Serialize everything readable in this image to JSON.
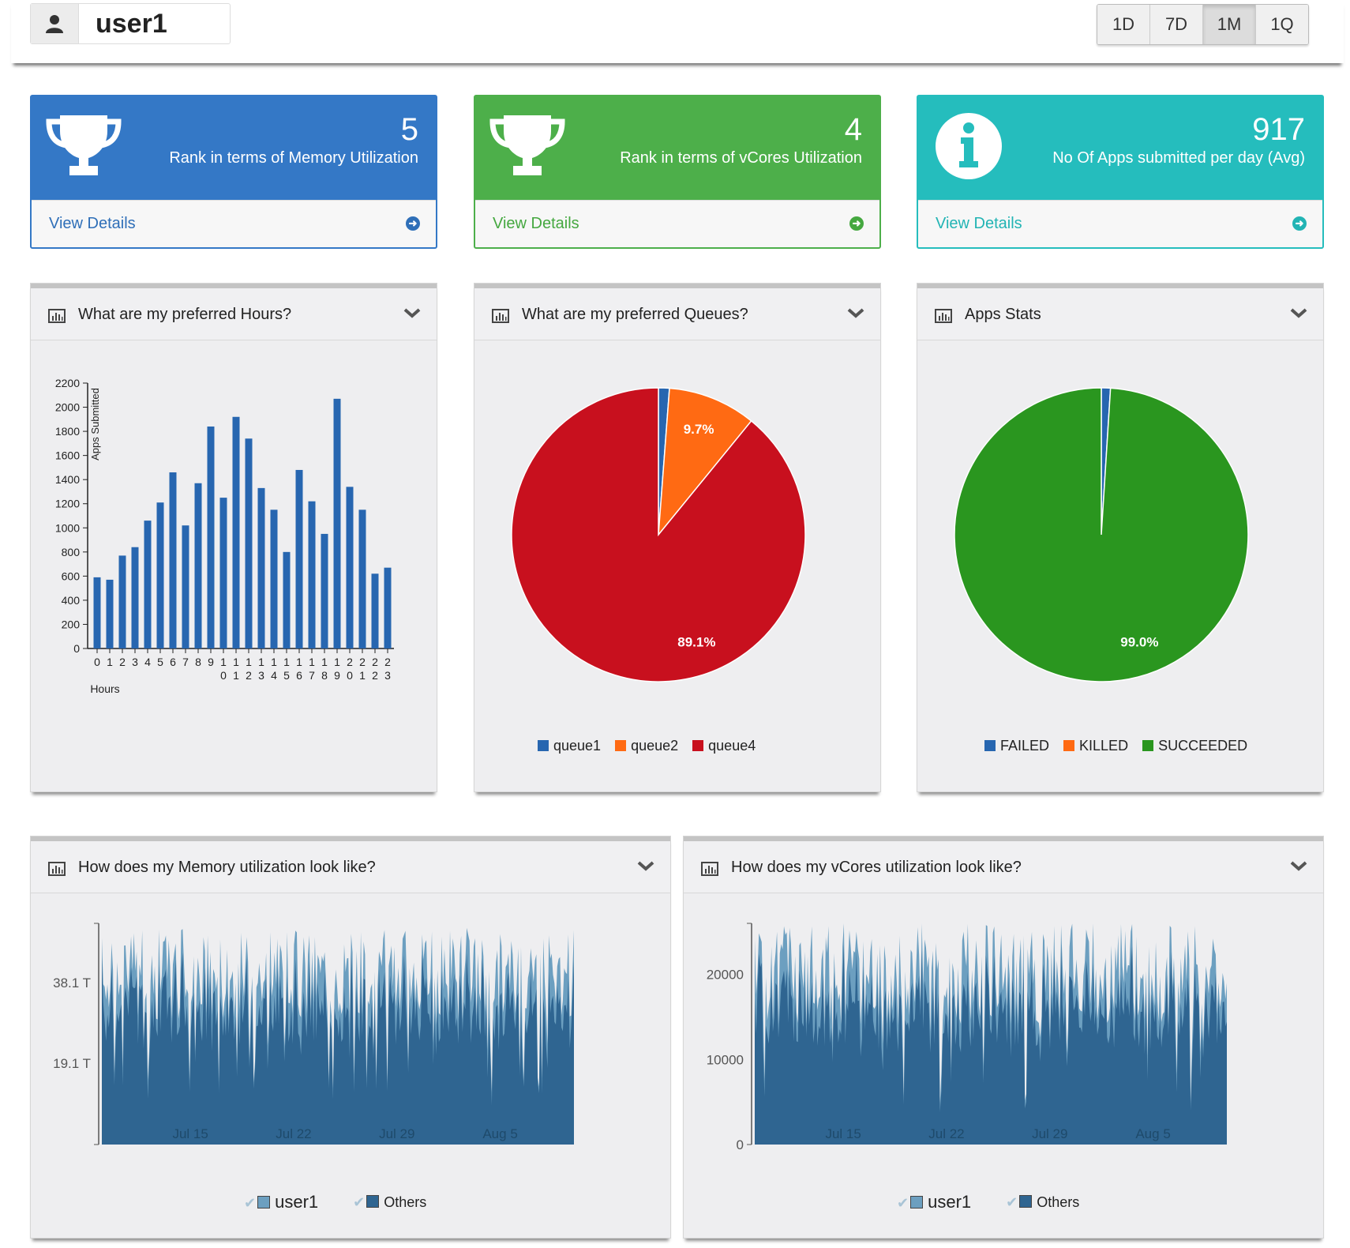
{
  "header": {
    "username": "user1",
    "periods": [
      "1D",
      "7D",
      "1M",
      "1Q"
    ],
    "active_period": "1M"
  },
  "stats": [
    {
      "value": "5",
      "label": "Rank in terms of Memory Utilization",
      "link": "View Details",
      "color": "#3478c6",
      "icon": "trophy-icon"
    },
    {
      "value": "4",
      "label": "Rank in terms of vCores Utilization",
      "link": "View Details",
      "color": "#4daf4a",
      "icon": "trophy-icon"
    },
    {
      "value": "917",
      "label": "No Of Apps submitted per day (Avg)",
      "link": "View Details",
      "color": "#25bdbd",
      "icon": "info-icon"
    }
  ],
  "panels": {
    "hours": {
      "title": "What are my preferred Hours?"
    },
    "queues": {
      "title": "What are my preferred Queues?"
    },
    "apps": {
      "title": "Apps Stats"
    },
    "memory": {
      "title": "How does my Memory utilization look like?"
    },
    "vcores": {
      "title": "How does my vCores utilization look like?"
    }
  },
  "chart_data": [
    {
      "type": "bar",
      "xlabel": "Hours",
      "ylabel": "Apps Submitted",
      "ylim": [
        0,
        2200
      ],
      "yticks": [
        0,
        200,
        400,
        600,
        800,
        1000,
        1200,
        1400,
        1600,
        1800,
        2000,
        2200
      ],
      "categories": [
        "0",
        "1",
        "2",
        "3",
        "4",
        "5",
        "6",
        "7",
        "8",
        "9",
        "10",
        "11",
        "12",
        "13",
        "14",
        "15",
        "16",
        "17",
        "18",
        "19",
        "20",
        "21",
        "22",
        "23"
      ],
      "values": [
        590,
        570,
        770,
        840,
        1060,
        1210,
        1460,
        1020,
        1370,
        1840,
        1250,
        1920,
        1740,
        1330,
        1150,
        800,
        1480,
        1220,
        950,
        2070,
        1340,
        1150,
        620,
        670
      ],
      "color": "#2766b0"
    },
    {
      "type": "pie",
      "slices": [
        {
          "label": "queue1",
          "value": 1.2,
          "color": "#2766b0",
          "display": ""
        },
        {
          "label": "queue2",
          "value": 9.7,
          "color": "#ff6a13",
          "display": "9.7%"
        },
        {
          "label": "queue4",
          "value": 89.1,
          "color": "#c8101e",
          "display": "89.1%"
        }
      ]
    },
    {
      "type": "pie",
      "slices": [
        {
          "label": "FAILED",
          "value": 1.0,
          "color": "#2766b0",
          "display": ""
        },
        {
          "label": "KILLED",
          "value": 0.0,
          "color": "#ff6a13",
          "display": ""
        },
        {
          "label": "SUCCEEDED",
          "value": 99.0,
          "color": "#2a961f",
          "display": "99.0%"
        }
      ]
    },
    {
      "type": "area",
      "ytick_labels": [
        "19.1 T",
        "38.1 T"
      ],
      "ytick_values": [
        19.1,
        38.1
      ],
      "ylim": [
        0,
        52
      ],
      "x_range": [
        "Jul 9",
        "Aug 10"
      ],
      "x_tick_labels": [
        "Jul 15",
        "Jul 22",
        "Jul 29",
        "Aug 5"
      ],
      "series": [
        {
          "name": "user1",
          "color": "#6c9fc0"
        },
        {
          "name": "Others",
          "color": "#2f6591"
        }
      ],
      "series_values_approx": {
        "user1_level": 0.08,
        "total_mean": 40,
        "total_min": 12,
        "total_max": 52
      }
    },
    {
      "type": "area",
      "ytick_labels": [
        "0",
        "10000",
        "20000"
      ],
      "ytick_values": [
        0,
        10000,
        20000
      ],
      "ylim": [
        0,
        26000
      ],
      "x_range": [
        "Jul 9",
        "Aug 10"
      ],
      "x_tick_labels": [
        "Jul 15",
        "Jul 22",
        "Jul 29",
        "Aug 5"
      ],
      "series": [
        {
          "name": "user1",
          "color": "#6c9fc0"
        },
        {
          "name": "Others",
          "color": "#2f6591"
        }
      ],
      "series_values_approx": {
        "user1_level": 0.08,
        "total_mean": 20000,
        "total_min": 4000,
        "total_max": 26000
      }
    }
  ]
}
